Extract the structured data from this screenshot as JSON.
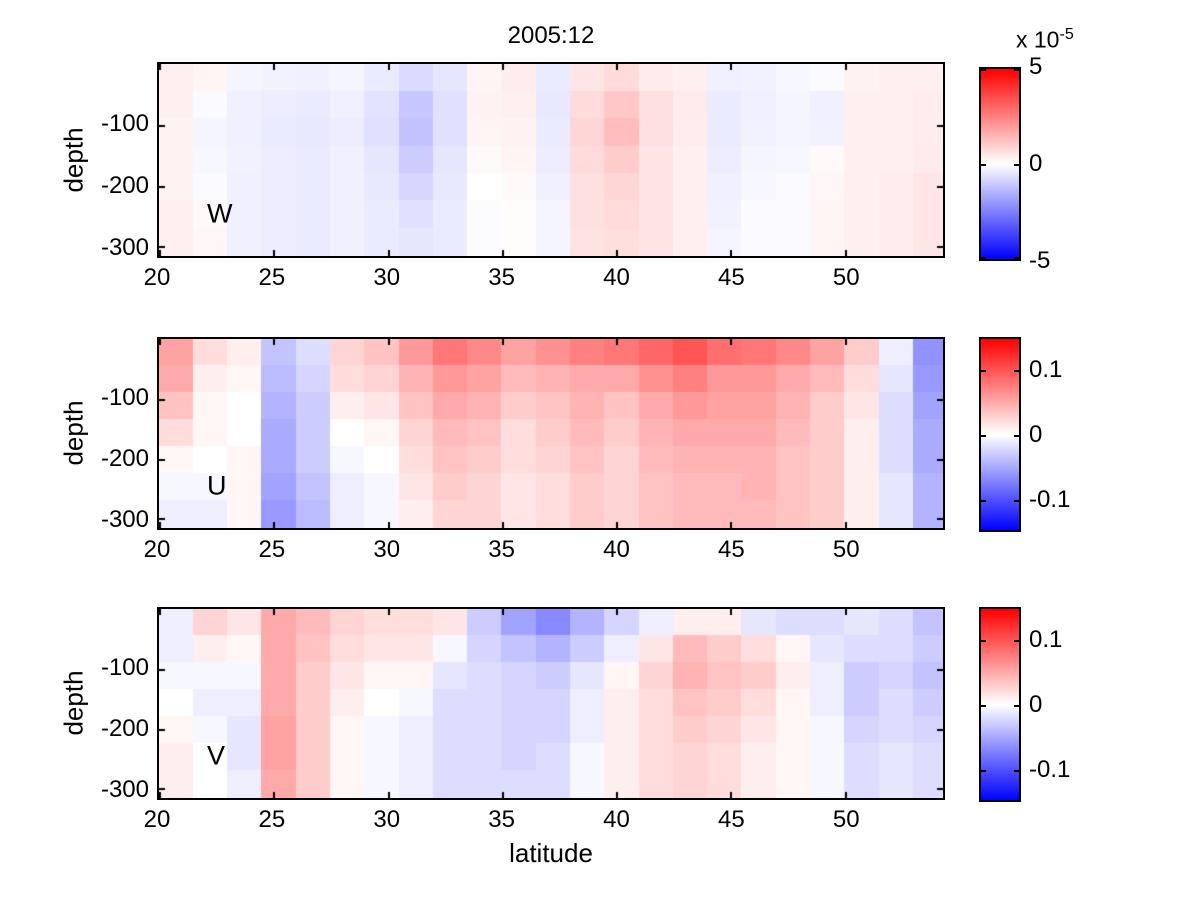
{
  "title": "2005:12",
  "xlabel": "latitude",
  "ylabel": "depth",
  "chart_data": [
    {
      "type": "heatmap",
      "label": "W",
      "xlabel": "latitude",
      "ylabel": "depth",
      "x_range": [
        20,
        54.3
      ],
      "y_range": [
        0,
        -316
      ],
      "x_ticks": [
        20,
        25,
        30,
        35,
        40,
        45,
        50
      ],
      "y_ticks": [
        -100,
        -200,
        -300
      ],
      "colormap": "blue-white-red",
      "vmin": -5,
      "vmax": 5,
      "value_scale": "x 10^-5",
      "colorbar": {
        "ticks": [
          {
            "label": "5",
            "value": 5
          },
          {
            "label": "0",
            "value": 0
          },
          {
            "label": "-5",
            "value": -5
          }
        ],
        "exponent_prefix": "x 10",
        "exponent_sup": "-5"
      },
      "lat_start": 20,
      "lat_step": 1.5,
      "depth_start": 0,
      "depth_step": -45,
      "values_by_lat_column": [
        [
          0.3,
          0.3,
          0.25,
          0.25,
          0.25,
          0.3,
          0.3
        ],
        [
          0.2,
          -0.1,
          -0.2,
          -0.15,
          -0.1,
          0.1,
          0.15
        ],
        [
          -0.2,
          -0.3,
          -0.3,
          -0.25,
          -0.3,
          -0.3,
          -0.3
        ],
        [
          -0.25,
          -0.35,
          -0.4,
          -0.35,
          -0.35,
          -0.35,
          -0.35
        ],
        [
          -0.3,
          -0.4,
          -0.45,
          -0.4,
          -0.4,
          -0.4,
          -0.4
        ],
        [
          -0.2,
          -0.3,
          -0.35,
          -0.3,
          -0.3,
          -0.3,
          -0.3
        ],
        [
          -0.4,
          -0.55,
          -0.6,
          -0.5,
          -0.45,
          -0.4,
          -0.4
        ],
        [
          -0.7,
          -1.1,
          -1.2,
          -1.0,
          -0.8,
          -0.6,
          -0.5
        ],
        [
          -0.5,
          -0.6,
          -0.6,
          -0.5,
          -0.45,
          -0.4,
          -0.4
        ],
        [
          0.2,
          0.25,
          0.2,
          0.1,
          0.0,
          -0.05,
          -0.05
        ],
        [
          0.35,
          0.3,
          0.25,
          0.2,
          0.1,
          0.05,
          0.05
        ],
        [
          -0.4,
          -0.45,
          -0.4,
          -0.35,
          -0.3,
          -0.2,
          -0.2
        ],
        [
          0.5,
          0.7,
          0.8,
          0.7,
          0.6,
          0.6,
          0.55
        ],
        [
          0.7,
          1.1,
          1.3,
          1.0,
          0.8,
          0.7,
          0.65
        ],
        [
          0.4,
          0.6,
          0.6,
          0.5,
          0.5,
          0.5,
          0.5
        ],
        [
          0.3,
          0.4,
          0.35,
          0.3,
          0.3,
          0.3,
          0.3
        ],
        [
          -0.3,
          -0.4,
          -0.4,
          -0.35,
          -0.3,
          -0.25,
          -0.2
        ],
        [
          -0.25,
          -0.3,
          -0.25,
          -0.2,
          -0.15,
          -0.1,
          -0.1
        ],
        [
          -0.15,
          -0.2,
          -0.2,
          -0.15,
          -0.1,
          -0.1,
          -0.1
        ],
        [
          -0.1,
          -0.3,
          -0.25,
          0.1,
          0.15,
          0.2,
          0.2
        ],
        [
          0.25,
          0.3,
          0.3,
          0.3,
          0.3,
          0.3,
          0.3
        ],
        [
          0.3,
          0.3,
          0.3,
          0.3,
          0.35,
          0.35,
          0.35
        ],
        [
          0.3,
          0.35,
          0.35,
          0.4,
          0.5,
          0.5,
          0.5
        ]
      ]
    },
    {
      "type": "heatmap",
      "label": "U",
      "xlabel": "latitude",
      "ylabel": "depth",
      "x_range": [
        20,
        54.3
      ],
      "y_range": [
        0,
        -316
      ],
      "x_ticks": [
        20,
        25,
        30,
        35,
        40,
        45,
        50
      ],
      "y_ticks": [
        -100,
        -200,
        -300
      ],
      "colormap": "blue-white-red",
      "vmin": -0.15,
      "vmax": 0.15,
      "colorbar": {
        "ticks": [
          {
            "label": "0.1",
            "value": 0.1
          },
          {
            "label": "0",
            "value": 0
          },
          {
            "label": "-0.1",
            "value": -0.1
          }
        ]
      },
      "lat_start": 20,
      "lat_step": 1.5,
      "depth_start": 0,
      "depth_step": -45,
      "values_by_lat_column": [
        [
          0.055,
          0.05,
          0.035,
          0.02,
          0.005,
          -0.005,
          -0.01
        ],
        [
          0.02,
          0.01,
          0.005,
          0.005,
          0.0,
          -0.005,
          -0.01
        ],
        [
          0.01,
          0.005,
          0.0,
          0.0,
          0.005,
          0.005,
          0.005
        ],
        [
          -0.035,
          -0.04,
          -0.045,
          -0.05,
          -0.05,
          -0.055,
          -0.06
        ],
        [
          -0.02,
          -0.025,
          -0.03,
          -0.03,
          -0.03,
          -0.035,
          -0.04
        ],
        [
          0.025,
          0.02,
          0.01,
          0.0,
          -0.005,
          -0.01,
          -0.01
        ],
        [
          0.035,
          0.025,
          0.015,
          0.005,
          0.0,
          -0.005,
          -0.005
        ],
        [
          0.06,
          0.045,
          0.035,
          0.025,
          0.02,
          0.015,
          0.01
        ],
        [
          0.08,
          0.06,
          0.05,
          0.04,
          0.035,
          0.03,
          0.025
        ],
        [
          0.07,
          0.055,
          0.045,
          0.035,
          0.03,
          0.025,
          0.025
        ],
        [
          0.055,
          0.04,
          0.03,
          0.02,
          0.02,
          0.015,
          0.015
        ],
        [
          0.065,
          0.045,
          0.035,
          0.03,
          0.025,
          0.02,
          0.02
        ],
        [
          0.075,
          0.05,
          0.045,
          0.04,
          0.035,
          0.03,
          0.03
        ],
        [
          0.08,
          0.05,
          0.035,
          0.03,
          0.025,
          0.025,
          0.025
        ],
        [
          0.09,
          0.065,
          0.05,
          0.045,
          0.04,
          0.035,
          0.035
        ],
        [
          0.1,
          0.075,
          0.06,
          0.05,
          0.045,
          0.04,
          0.04
        ],
        [
          0.085,
          0.06,
          0.055,
          0.05,
          0.045,
          0.04,
          0.04
        ],
        [
          0.08,
          0.06,
          0.055,
          0.05,
          0.045,
          0.045,
          0.04
        ],
        [
          0.07,
          0.05,
          0.045,
          0.04,
          0.035,
          0.035,
          0.035
        ],
        [
          0.055,
          0.04,
          0.03,
          0.03,
          0.03,
          0.03,
          0.03
        ],
        [
          0.03,
          0.02,
          0.015,
          0.01,
          0.01,
          0.01,
          0.01
        ],
        [
          -0.01,
          -0.015,
          -0.02,
          -0.02,
          -0.02,
          -0.015,
          -0.015
        ],
        [
          -0.065,
          -0.06,
          -0.055,
          -0.05,
          -0.05,
          -0.045,
          -0.045
        ]
      ]
    },
    {
      "type": "heatmap",
      "label": "V",
      "xlabel": "latitude",
      "ylabel": "depth",
      "x_range": [
        20,
        54.3
      ],
      "y_range": [
        0,
        -316
      ],
      "x_ticks": [
        20,
        25,
        30,
        35,
        40,
        45,
        50
      ],
      "y_ticks": [
        -100,
        -200,
        -300
      ],
      "colormap": "blue-white-red",
      "vmin": -0.15,
      "vmax": 0.15,
      "colorbar": {
        "ticks": [
          {
            "label": "0.1",
            "value": 0.1
          },
          {
            "label": "0",
            "value": 0
          },
          {
            "label": "-0.1",
            "value": -0.1
          }
        ]
      },
      "lat_start": 20,
      "lat_step": 1.5,
      "depth_start": 0,
      "depth_step": -45,
      "values_by_lat_column": [
        [
          -0.01,
          -0.01,
          -0.005,
          0.0,
          0.005,
          0.01,
          0.01
        ],
        [
          0.025,
          0.01,
          -0.005,
          -0.01,
          -0.005,
          0.0,
          0.0
        ],
        [
          0.015,
          0.005,
          -0.005,
          -0.01,
          -0.015,
          -0.015,
          -0.01
        ],
        [
          0.05,
          0.05,
          0.05,
          0.05,
          0.055,
          0.055,
          0.05
        ],
        [
          0.04,
          0.035,
          0.03,
          0.03,
          0.03,
          0.03,
          0.03
        ],
        [
          0.025,
          0.02,
          0.015,
          0.01,
          0.005,
          0.005,
          0.005
        ],
        [
          0.02,
          0.015,
          0.005,
          0.0,
          -0.005,
          -0.005,
          -0.005
        ],
        [
          0.02,
          0.015,
          0.005,
          -0.005,
          -0.01,
          -0.01,
          -0.01
        ],
        [
          0.015,
          -0.005,
          -0.015,
          -0.02,
          -0.02,
          -0.02,
          -0.02
        ],
        [
          -0.03,
          -0.025,
          -0.02,
          -0.02,
          -0.02,
          -0.02,
          -0.02
        ],
        [
          -0.055,
          -0.035,
          -0.025,
          -0.025,
          -0.025,
          -0.025,
          -0.02
        ],
        [
          -0.07,
          -0.045,
          -0.03,
          -0.025,
          -0.025,
          -0.02,
          -0.02
        ],
        [
          -0.045,
          -0.03,
          -0.015,
          -0.01,
          -0.01,
          -0.005,
          -0.005
        ],
        [
          -0.025,
          -0.01,
          0.005,
          0.01,
          0.01,
          0.01,
          0.01
        ],
        [
          -0.01,
          0.015,
          0.025,
          0.02,
          0.02,
          0.02,
          0.02
        ],
        [
          0.01,
          0.04,
          0.045,
          0.035,
          0.03,
          0.025,
          0.025
        ],
        [
          0.01,
          0.03,
          0.035,
          0.03,
          0.025,
          0.02,
          0.02
        ],
        [
          -0.015,
          0.02,
          0.03,
          0.02,
          0.015,
          0.01,
          0.01
        ],
        [
          -0.02,
          0.005,
          0.01,
          0.005,
          0.005,
          0.005,
          0.005
        ],
        [
          -0.02,
          -0.015,
          -0.01,
          -0.01,
          -0.005,
          -0.005,
          -0.005
        ],
        [
          -0.015,
          -0.02,
          -0.03,
          -0.03,
          -0.025,
          -0.02,
          -0.02
        ],
        [
          -0.02,
          -0.02,
          -0.025,
          -0.02,
          -0.02,
          -0.015,
          -0.015
        ],
        [
          -0.035,
          -0.03,
          -0.035,
          -0.03,
          -0.025,
          -0.02,
          -0.02
        ]
      ]
    }
  ]
}
